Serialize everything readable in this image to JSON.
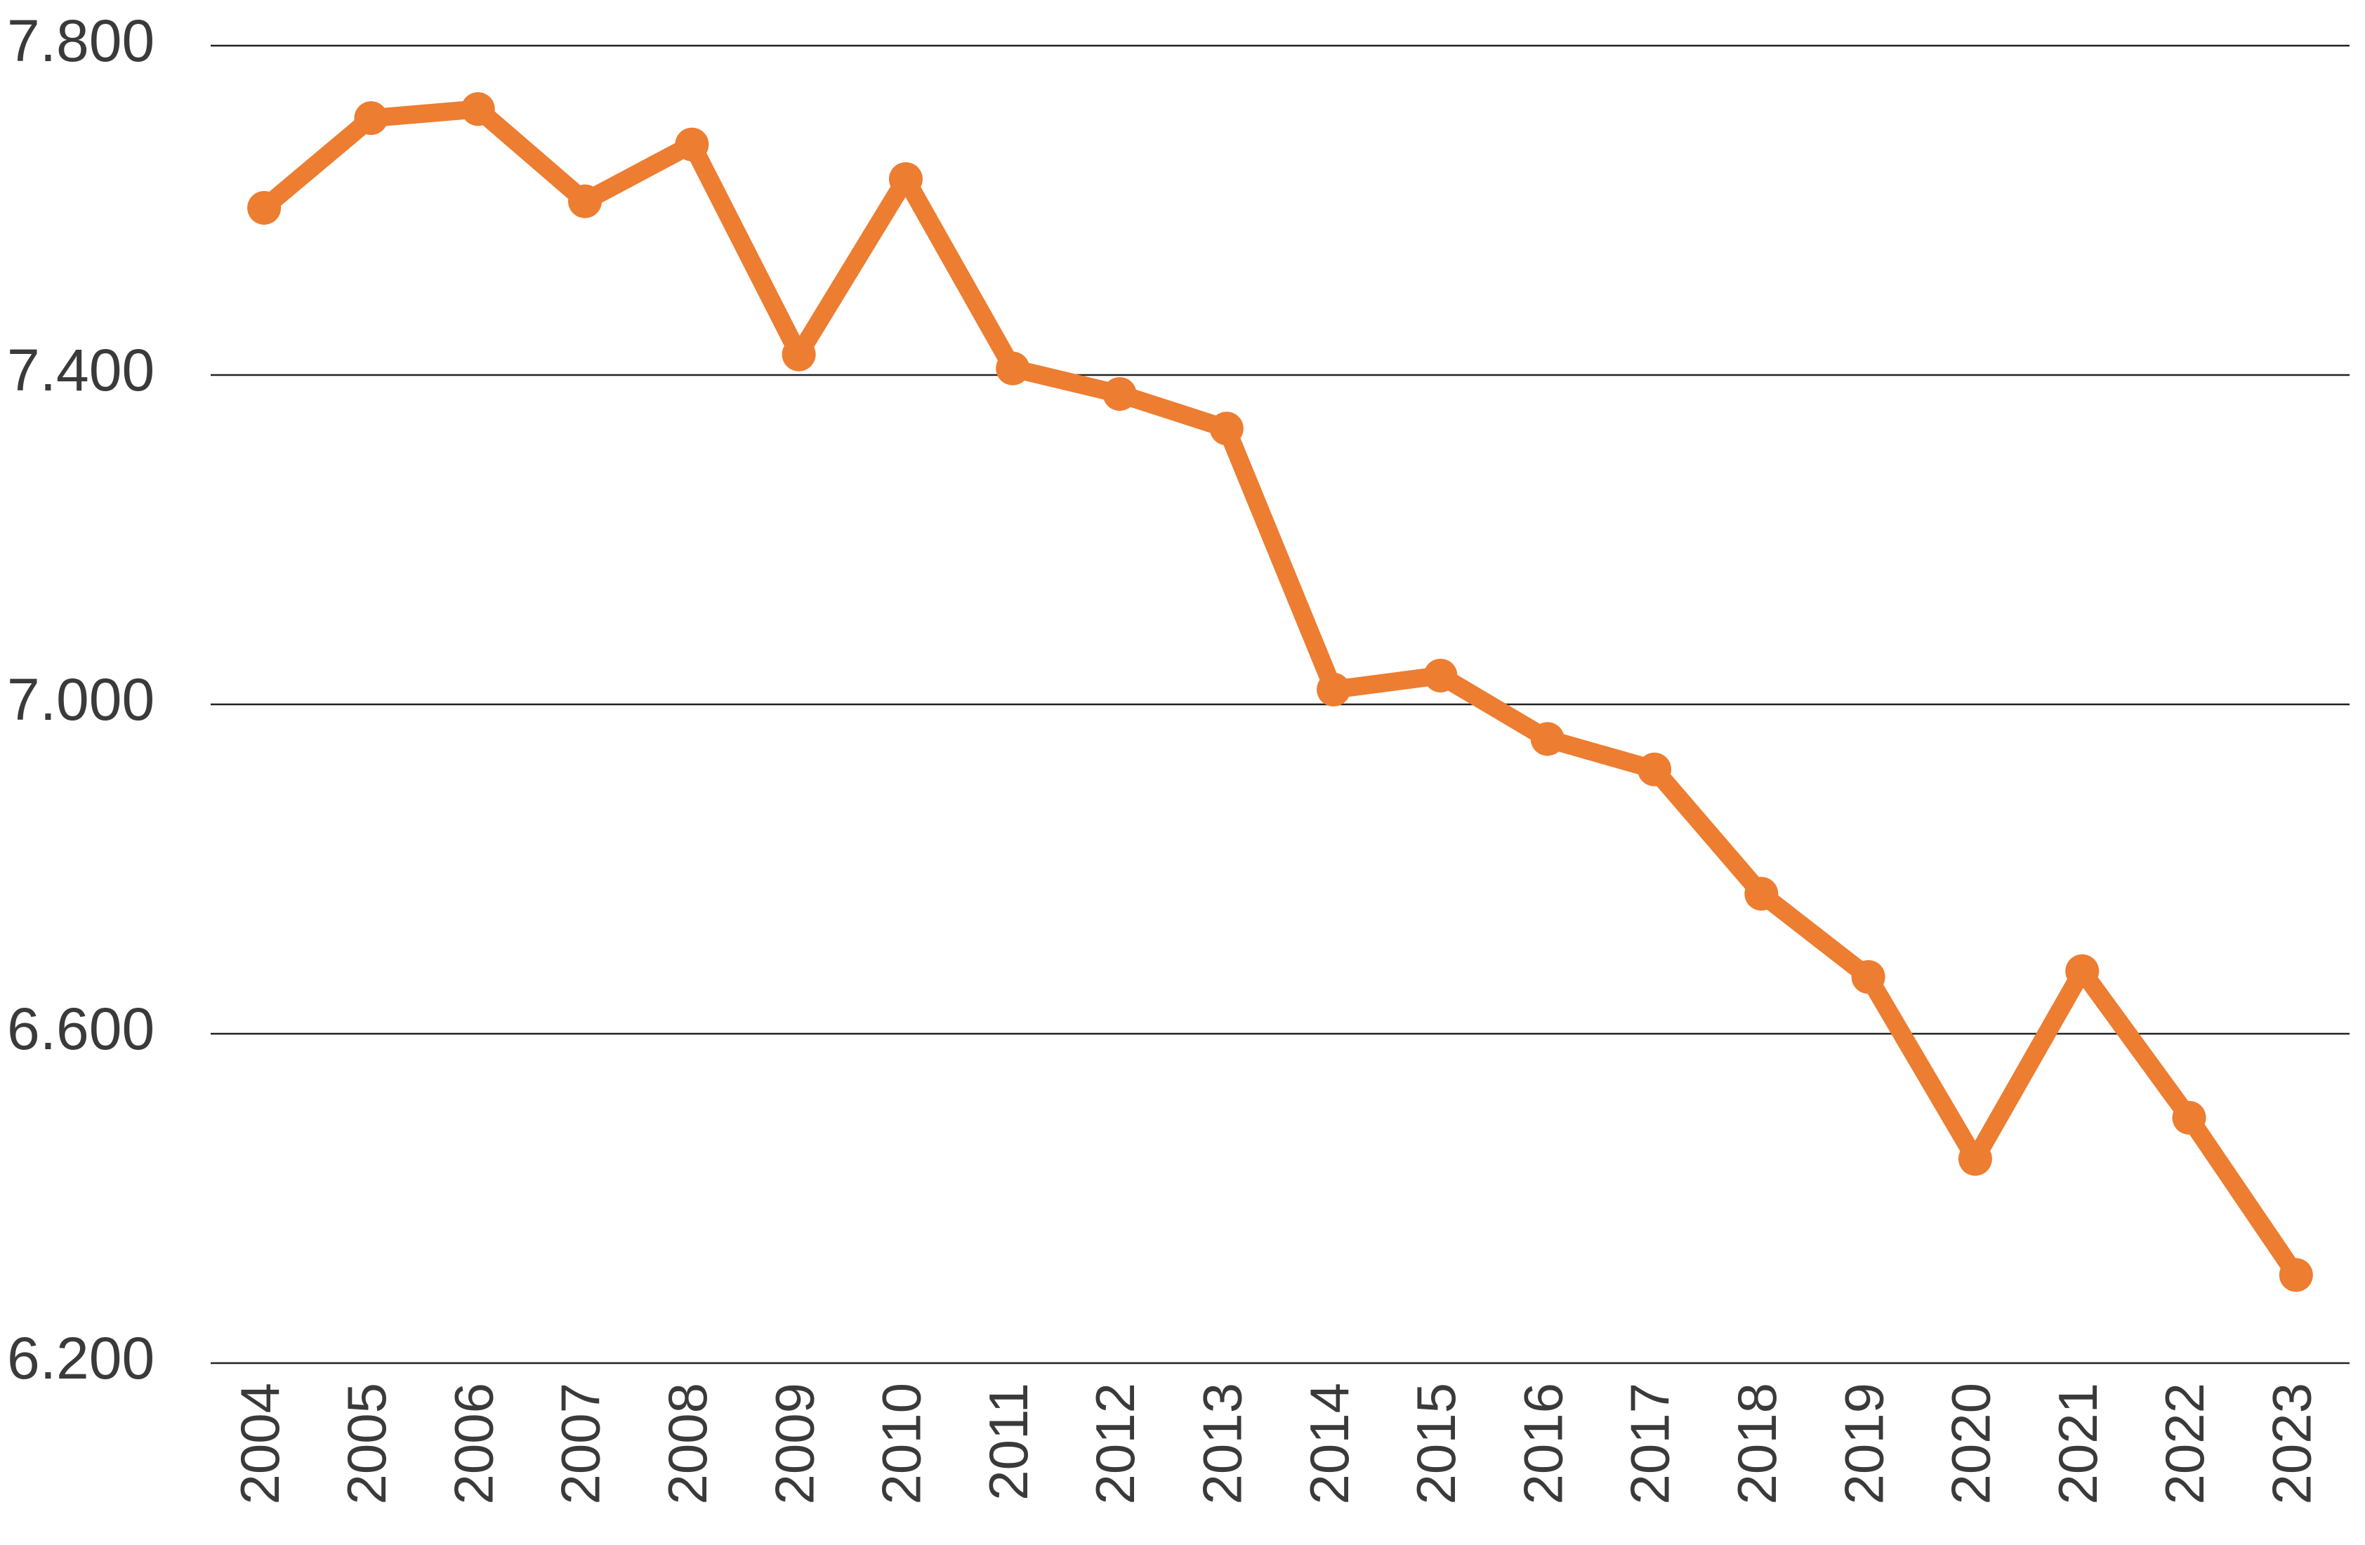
{
  "chart_data": {
    "type": "line",
    "categories": [
      "2004",
      "2005",
      "2006",
      "2007",
      "2008",
      "2009",
      "2010",
      "2011",
      "2012",
      "2013",
      "2014",
      "2015",
      "2016",
      "2017",
      "2018",
      "2019",
      "2020",
      "2021",
      "2022",
      "2023"
    ],
    "values": [
      7603,
      7712,
      7723,
      7611,
      7680,
      7425,
      7638,
      7408,
      7377,
      7335,
      7018,
      7035,
      6958,
      6921,
      6770,
      6669,
      6448,
      6676,
      6498,
      6307
    ],
    "color": "#ed7d31",
    "ylim": [
      6200,
      7800
    ],
    "yticks": [
      {
        "value": 6200,
        "label": "6.200"
      },
      {
        "value": 6600,
        "label": "6.600"
      },
      {
        "value": 7000,
        "label": "7.000"
      },
      {
        "value": 7400,
        "label": "7.400"
      },
      {
        "value": 7800,
        "label": "7.800"
      }
    ],
    "grid": true
  }
}
